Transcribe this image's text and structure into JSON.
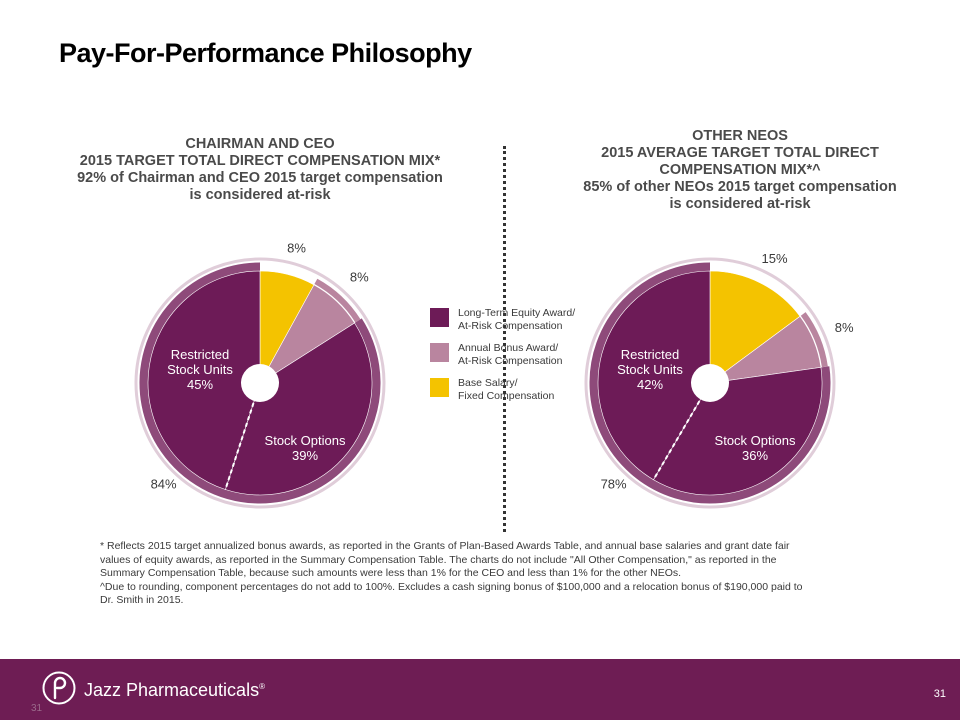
{
  "title": "Pay-For-Performance Philosophy",
  "colors": {
    "long_term": "#6d1b57",
    "annual_bonus": "#b9859f",
    "base_salary": "#f4c300",
    "ring_outer": "#e0cdd9",
    "ring_inner": "#8e4a7a",
    "footer": "#6e1d54"
  },
  "left_chart": {
    "heading": [
      "CHAIRMAN AND CEO",
      "2015 TARGET TOTAL DIRECT COMPENSATION MIX*",
      "92% of Chairman and CEO 2015 target compensation",
      "is considered at-risk"
    ],
    "at_risk_label": "84%",
    "slice_labels": {
      "rsu": [
        "Restricted",
        "Stock Units",
        "45%"
      ],
      "options": [
        "Stock Options",
        "39%"
      ],
      "bonus": "8%",
      "salary": "8%"
    }
  },
  "right_chart": {
    "heading": [
      "OTHER NEOS",
      "2015 AVERAGE TARGET TOTAL DIRECT",
      "COMPENSATION MIX*^",
      "85% of other NEOs 2015 target compensation",
      "is considered at-risk"
    ],
    "at_risk_label": "78%",
    "slice_labels": {
      "rsu": [
        "Restricted",
        "Stock Units",
        "42%"
      ],
      "options": [
        "Stock Options",
        "36%"
      ],
      "bonus": "8%",
      "salary": "15%"
    }
  },
  "legend": [
    {
      "lines": [
        "Long-Term Equity Award/",
        "At-Risk Compensation"
      ],
      "color": "#6d1b57"
    },
    {
      "lines": [
        "Annual Bonus Award/",
        "At-Risk Compensation"
      ],
      "color": "#b9859f"
    },
    {
      "lines": [
        "Base Salary/",
        "Fixed Compensation"
      ],
      "color": "#f4c300"
    }
  ],
  "chart_data": [
    {
      "type": "pie",
      "title": "CHAIRMAN AND CEO 2015 TARGET TOTAL DIRECT COMPENSATION MIX*",
      "categories": [
        "Base Salary",
        "Annual Bonus Award",
        "Stock Options",
        "Restricted Stock Units"
      ],
      "values": [
        8,
        8,
        39,
        45
      ],
      "group_annotations": [
        {
          "label": "84%",
          "covers": [
            "Stock Options",
            "Restricted Stock Units"
          ]
        }
      ]
    },
    {
      "type": "pie",
      "title": "OTHER NEOS 2015 AVERAGE TARGET TOTAL DIRECT COMPENSATION MIX*^",
      "categories": [
        "Base Salary",
        "Annual Bonus Award",
        "Stock Options",
        "Restricted Stock Units"
      ],
      "values": [
        15,
        8,
        36,
        42
      ],
      "group_annotations": [
        {
          "label": "78%",
          "covers": [
            "Stock Options",
            "Restricted Stock Units"
          ]
        }
      ]
    }
  ],
  "footnote": [
    "* Reflects 2015 target annualized bonus awards, as reported in the Grants of Plan-Based Awards Table, and annual base salaries and grant date fair",
    "values of equity awards, as reported in the Summary Compensation Table. The charts do not include \"All Other Compensation,\" as reported in the",
    "Summary Compensation Table, because such amounts were less than 1% for the CEO and less than 1% for the other NEOs.",
    "^Due to rounding, component percentages do not add to 100%. Excludes a cash signing bonus of $100,000 and a relocation bonus of $190,000 paid to",
    "Dr. Smith in 2015."
  ],
  "footer": {
    "brand": "Jazz Pharmaceuticals",
    "trademark": "®",
    "page_number": "31",
    "ghost_page_number": "31"
  }
}
